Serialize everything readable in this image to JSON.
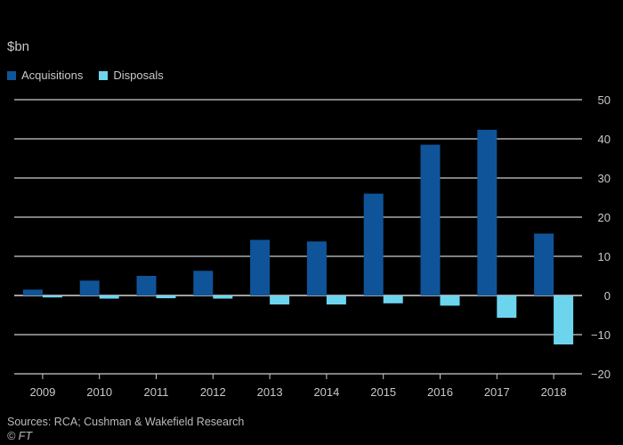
{
  "chart_data": {
    "type": "bar",
    "title": "",
    "ylabel": "$bn",
    "xlabel": "",
    "categories": [
      "2009",
      "2010",
      "2011",
      "2012",
      "2013",
      "2014",
      "2015",
      "2016",
      "2017",
      "2018"
    ],
    "series": [
      {
        "name": "Acquisitions",
        "color": "#0f5499",
        "values": [
          1.5,
          3.8,
          5.0,
          6.3,
          14.2,
          13.8,
          26.0,
          38.5,
          42.3,
          15.8
        ]
      },
      {
        "name": "Disposals",
        "color": "#6dd4ee",
        "values": [
          -0.5,
          -0.8,
          -0.7,
          -0.8,
          -2.3,
          -2.3,
          -2.0,
          -2.6,
          -5.7,
          -12.5
        ]
      }
    ],
    "ylim": [
      -20,
      50
    ],
    "yticks": [
      50,
      40,
      30,
      20,
      10,
      0,
      -10,
      -20
    ],
    "grid": true,
    "legend_position": "top-left"
  },
  "source_text": "Sources: RCA; Cushman & Wakefield Research",
  "credit_text": "© FT"
}
